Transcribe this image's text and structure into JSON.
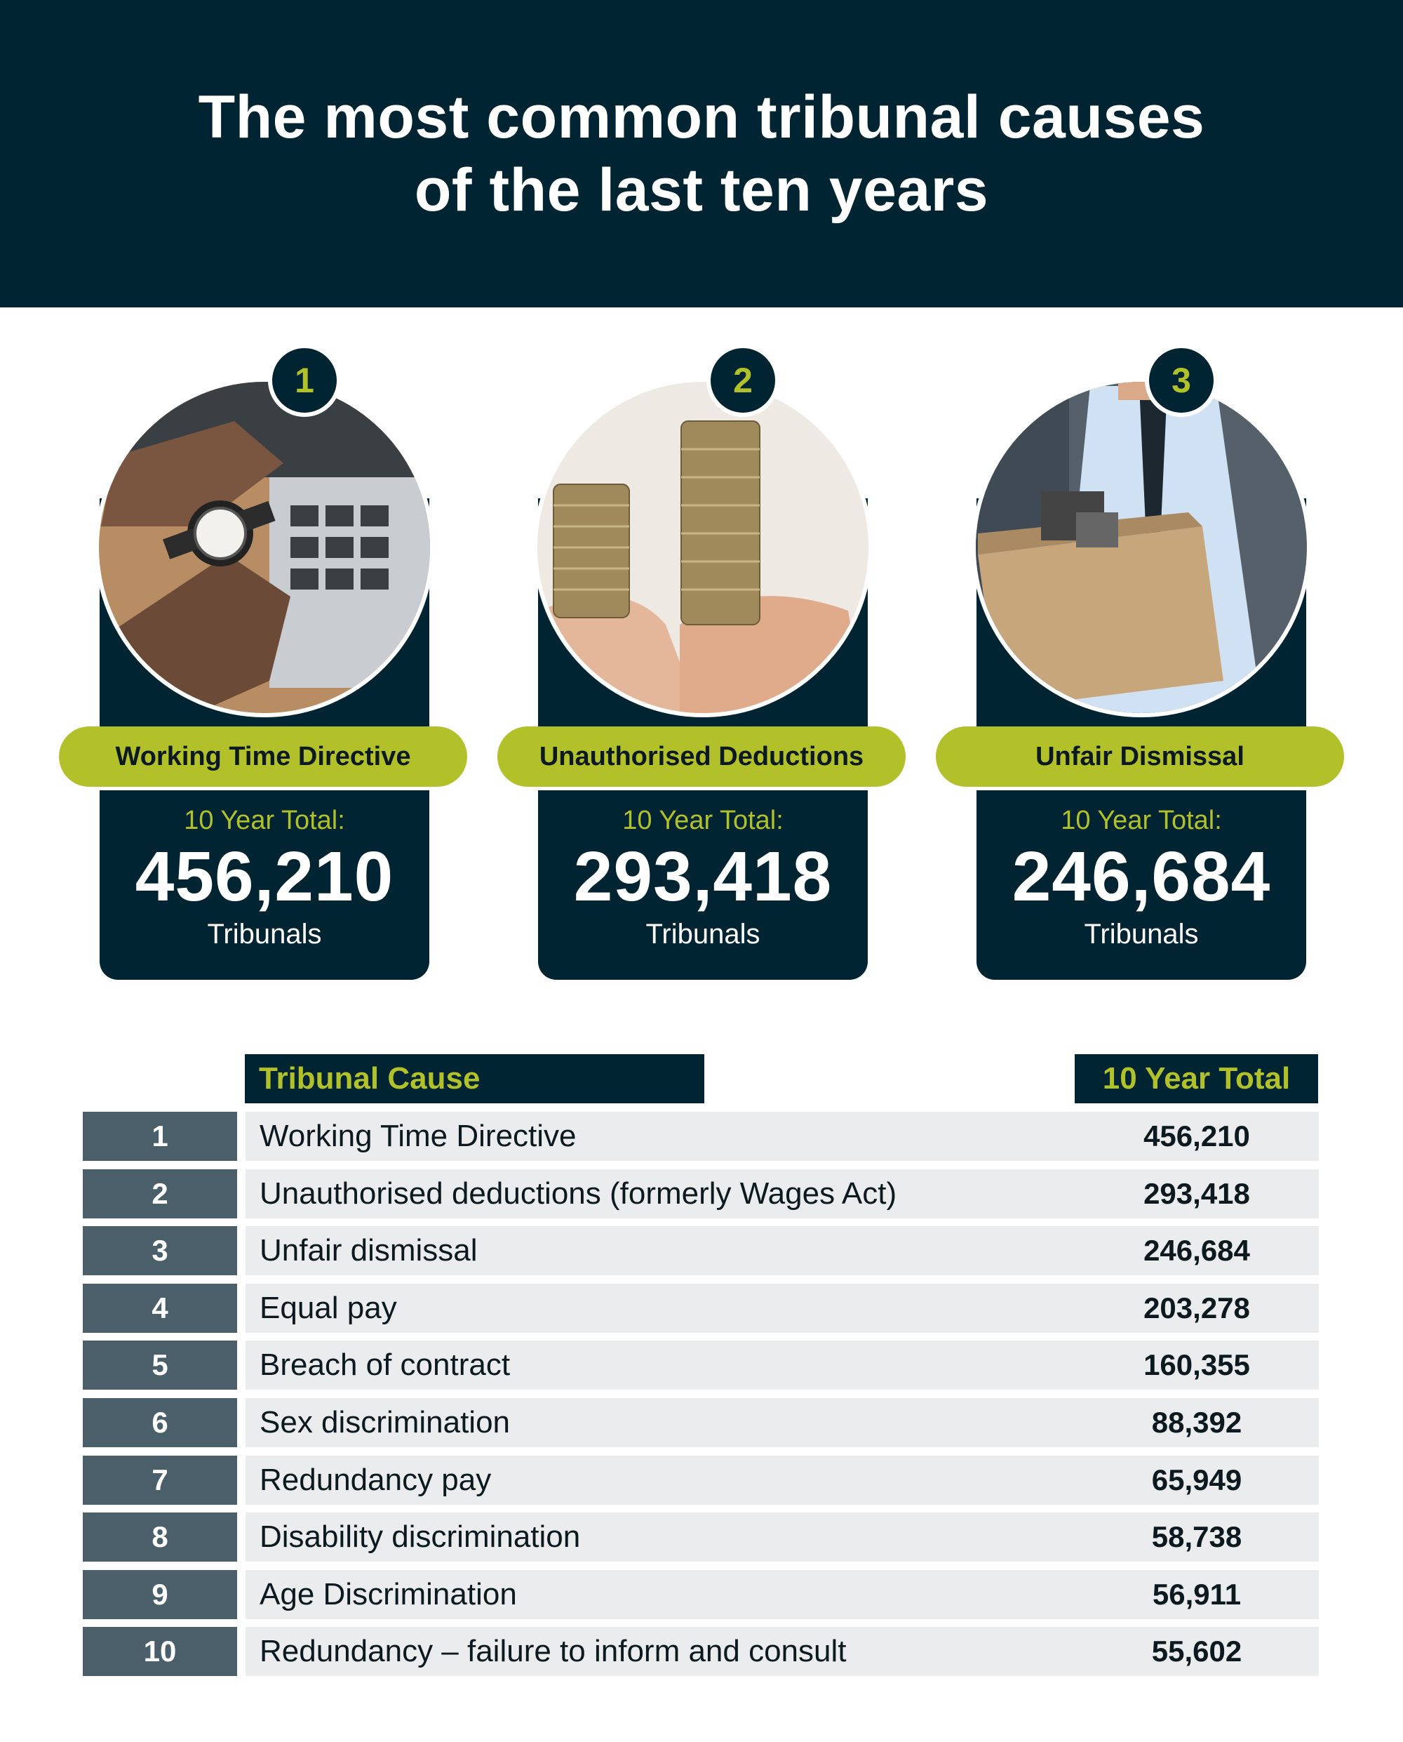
{
  "header": {
    "title_line1": "The most common tribunal causes",
    "title_line2": "of the last ten years"
  },
  "colors": {
    "navy": "#002431",
    "accent": "#b2c02a",
    "rank_cell": "#4a5f69",
    "row_bg": "#ebecee"
  },
  "cards": [
    {
      "rank": "1",
      "name": "Working Time Directive",
      "label": "10 Year Total:",
      "value": "456,210",
      "unit": "Tribunals",
      "photo": "hands-checking-watch-icon"
    },
    {
      "rank": "2",
      "name": "Unauthorised Deductions",
      "label": "10 Year Total:",
      "value": "293,418",
      "unit": "Tribunals",
      "photo": "coin-stacks-icon"
    },
    {
      "rank": "3",
      "name": "Unfair Dismissal",
      "label": "10 Year Total:",
      "value": "246,684",
      "unit": "Tribunals",
      "photo": "man-carrying-box-icon"
    }
  ],
  "chart_data": {
    "type": "table",
    "columns": [
      "",
      "Tribunal Cause",
      "10 Year Total"
    ],
    "rows": [
      {
        "rank": "1",
        "cause": "Working Time Directive",
        "total": "456,210"
      },
      {
        "rank": "2",
        "cause": "Unauthorised deductions (formerly Wages Act)",
        "total": "293,418"
      },
      {
        "rank": "3",
        "cause": "Unfair dismissal",
        "total": "246,684"
      },
      {
        "rank": "4",
        "cause": "Equal pay",
        "total": "203,278"
      },
      {
        "rank": "5",
        "cause": "Breach of contract",
        "total": "160,355"
      },
      {
        "rank": "6",
        "cause": "Sex discrimination",
        "total": "88,392"
      },
      {
        "rank": "7",
        "cause": "Redundancy pay",
        "total": "65,949"
      },
      {
        "rank": "8",
        "cause": "Disability discrimination",
        "total": "58,738"
      },
      {
        "rank": "9",
        "cause": "Age Discrimination",
        "total": "56,911"
      },
      {
        "rank": "10",
        "cause": "Redundancy – failure to inform and consult",
        "total": "55,602"
      }
    ]
  }
}
